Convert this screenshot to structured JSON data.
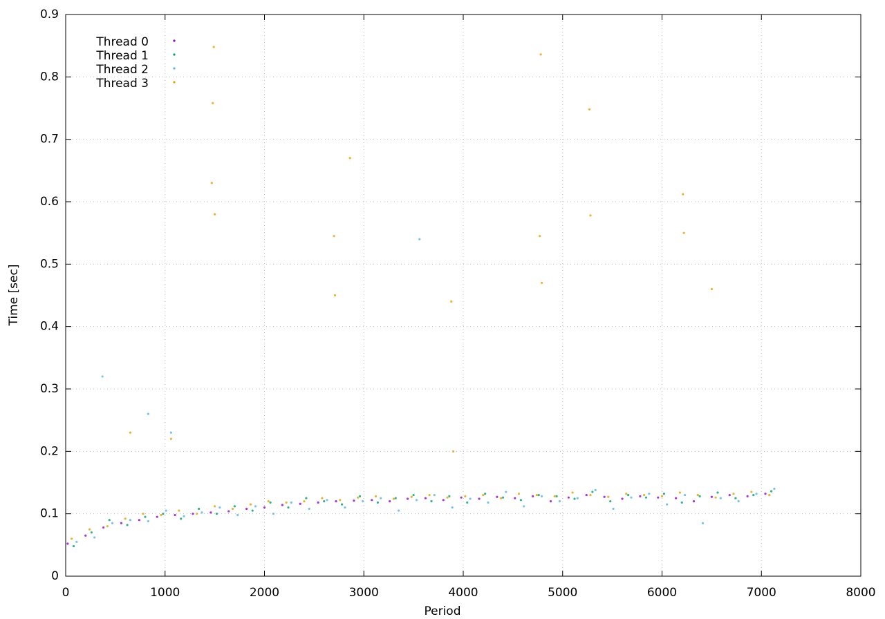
{
  "chart_data": {
    "type": "scatter",
    "xlabel": "Period",
    "ylabel": "Time [sec]",
    "xlim": [
      0,
      8000
    ],
    "xticks": [
      0,
      1000,
      2000,
      3000,
      4000,
      5000,
      6000,
      7000,
      8000
    ],
    "ylim": [
      0,
      0.9
    ],
    "yticks": [
      0,
      0.1,
      0.2,
      0.3,
      0.4,
      0.5,
      0.6,
      0.7,
      0.8,
      0.9
    ],
    "grid": true,
    "legend": "top-left",
    "series": [
      {
        "name": "Thread 0",
        "color": "#9400d3",
        "x": [
          20,
          200,
          380,
          560,
          740,
          920,
          1100,
          1280,
          1460,
          1640,
          1820,
          2000,
          2180,
          2360,
          2540,
          2720,
          2900,
          3080,
          3260,
          3440,
          3620,
          3800,
          3980,
          4160,
          4340,
          4520,
          4700,
          4880,
          5060,
          5240,
          5420,
          5600,
          5780,
          5960,
          6140,
          6320,
          6500,
          6680,
          6860,
          7040
        ],
        "values": [
          0.052,
          0.065,
          0.078,
          0.085,
          0.09,
          0.095,
          0.098,
          0.1,
          0.102,
          0.104,
          0.108,
          0.11,
          0.114,
          0.116,
          0.118,
          0.12,
          0.121,
          0.122,
          0.12,
          0.124,
          0.125,
          0.122,
          0.126,
          0.124,
          0.127,
          0.125,
          0.128,
          0.12,
          0.126,
          0.13,
          0.127,
          0.124,
          0.128,
          0.126,
          0.125,
          0.12,
          0.127,
          0.13,
          0.128,
          0.132
        ]
      },
      {
        "name": "Thread 1",
        "color": "#009e73",
        "x": [
          80,
          260,
          440,
          620,
          800,
          980,
          1160,
          1340,
          1520,
          1700,
          1880,
          2060,
          2240,
          2420,
          2600,
          2780,
          2960,
          3140,
          3320,
          3500,
          3680,
          3860,
          4040,
          4220,
          4400,
          4580,
          4760,
          4940,
          5120,
          5300,
          5480,
          5660,
          5840,
          6020,
          6200,
          6380,
          6560,
          6740,
          6920,
          7100
        ],
        "values": [
          0.048,
          0.07,
          0.09,
          0.082,
          0.095,
          0.1,
          0.092,
          0.108,
          0.1,
          0.112,
          0.105,
          0.118,
          0.11,
          0.125,
          0.12,
          0.115,
          0.128,
          0.118,
          0.125,
          0.13,
          0.12,
          0.128,
          0.118,
          0.132,
          0.126,
          0.122,
          0.13,
          0.128,
          0.124,
          0.135,
          0.12,
          0.13,
          0.126,
          0.132,
          0.118,
          0.128,
          0.134,
          0.125,
          0.13,
          0.136
        ]
      },
      {
        "name": "Thread 2",
        "color": "#56b4e9",
        "x": [
          110,
          290,
          470,
          650,
          830,
          1010,
          1190,
          1370,
          1550,
          1730,
          1910,
          2090,
          2270,
          2450,
          2630,
          2810,
          2990,
          3170,
          3350,
          3530,
          3710,
          3890,
          4070,
          4250,
          4430,
          4610,
          4790,
          4970,
          5150,
          5330,
          5510,
          5690,
          5870,
          6050,
          6230,
          6410,
          6590,
          6770,
          6950,
          7130,
          370,
          830,
          1060,
          3560
        ],
        "values": [
          0.055,
          0.062,
          0.085,
          0.09,
          0.088,
          0.105,
          0.096,
          0.102,
          0.11,
          0.098,
          0.112,
          0.1,
          0.118,
          0.108,
          0.122,
          0.11,
          0.12,
          0.125,
          0.105,
          0.122,
          0.13,
          0.11,
          0.124,
          0.118,
          0.135,
          0.112,
          0.128,
          0.12,
          0.125,
          0.138,
          0.108,
          0.126,
          0.132,
          0.115,
          0.13,
          0.085,
          0.125,
          0.12,
          0.132,
          0.14,
          0.32,
          0.26,
          0.23,
          0.54
        ]
      },
      {
        "name": "Thread 3",
        "color": "#e69f00",
        "x": [
          60,
          240,
          420,
          600,
          780,
          960,
          1140,
          1320,
          1500,
          1680,
          1860,
          2040,
          2220,
          2400,
          2580,
          2760,
          2940,
          3120,
          3300,
          3480,
          3660,
          3840,
          4020,
          4200,
          4380,
          4560,
          4740,
          4920,
          5100,
          5280,
          5460,
          5640,
          5820,
          6000,
          6180,
          6360,
          6540,
          6720,
          6900,
          7080,
          1490,
          1480,
          1470,
          1500,
          2700,
          2710,
          2860,
          3880,
          4780,
          4770,
          4790,
          5270,
          5280,
          6210,
          6220,
          6500,
          650,
          1060,
          3900
        ],
        "values": [
          0.06,
          0.075,
          0.08,
          0.092,
          0.1,
          0.098,
          0.105,
          0.1,
          0.112,
          0.108,
          0.115,
          0.12,
          0.118,
          0.12,
          0.125,
          0.122,
          0.126,
          0.128,
          0.124,
          0.127,
          0.13,
          0.126,
          0.128,
          0.13,
          0.125,
          0.132,
          0.13,
          0.128,
          0.134,
          0.13,
          0.127,
          0.132,
          0.13,
          0.128,
          0.134,
          0.13,
          0.126,
          0.132,
          0.135,
          0.13,
          0.848,
          0.758,
          0.63,
          0.58,
          0.545,
          0.45,
          0.67,
          0.44,
          0.836,
          0.545,
          0.47,
          0.748,
          0.578,
          0.612,
          0.55,
          0.46,
          0.23,
          0.22,
          0.2
        ]
      }
    ]
  }
}
